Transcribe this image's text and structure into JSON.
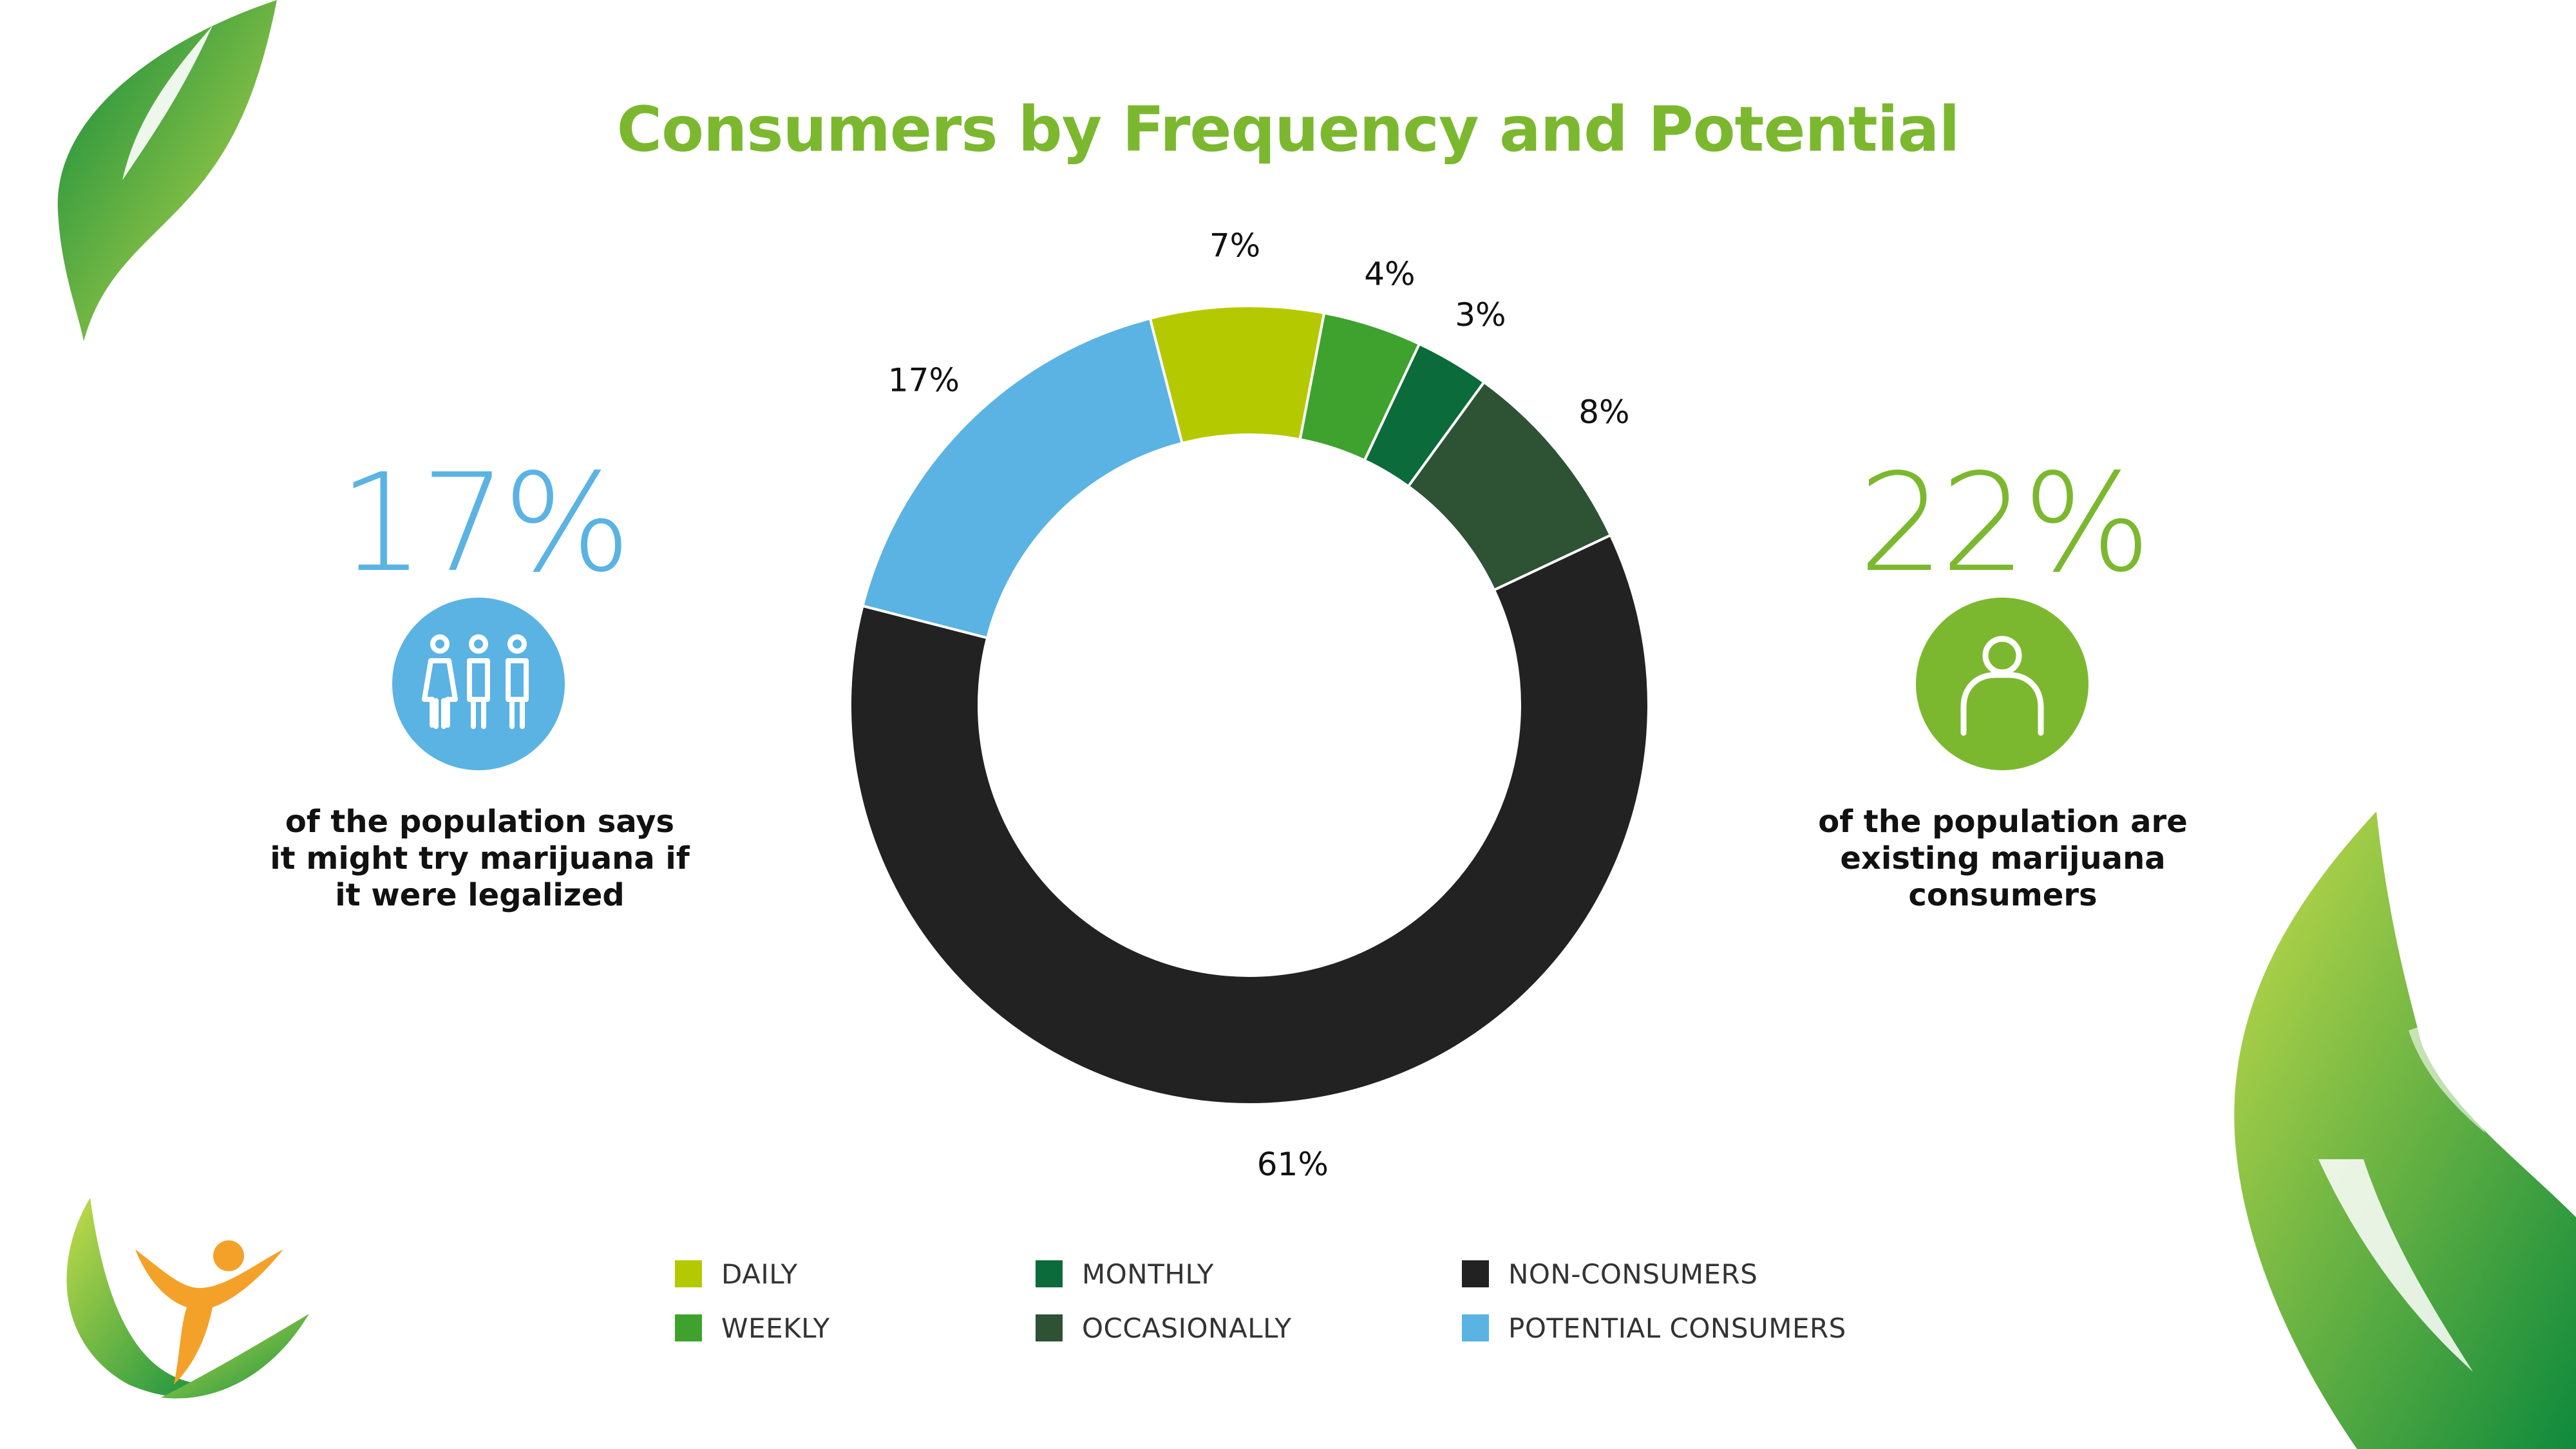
{
  "title": "Consumers by Frequency and Potential",
  "left_stat": {
    "value": "17%",
    "icon": "people-group-icon",
    "caption_lines": [
      "of the population says",
      "it might try marijuana if",
      "it were legalized"
    ]
  },
  "right_stat": {
    "value": "22%",
    "icon": "person-icon",
    "caption_lines": [
      "of the population are",
      "existing marijuana",
      "consumers"
    ]
  },
  "colors": {
    "title": "#7cb82f",
    "potential_blue": "#5ab3e3",
    "consumer_green": "#7cb82f"
  },
  "chart_data": {
    "type": "pie",
    "variant": "donut",
    "title": "Consumers by Frequency and Potential",
    "slices": [
      {
        "name": "DAILY",
        "value": 7,
        "label": "7%",
        "color": "#b5c900"
      },
      {
        "name": "WEEKLY",
        "value": 4,
        "label": "4%",
        "color": "#3fa22f"
      },
      {
        "name": "MONTHLY",
        "value": 3,
        "label": "3%",
        "color": "#0b6b3a"
      },
      {
        "name": "OCCASIONALLY",
        "value": 8,
        "label": "8%",
        "color": "#2e5234"
      },
      {
        "name": "NON-CONSUMERS",
        "value": 61,
        "label": "61%",
        "color": "#222222"
      },
      {
        "name": "POTENTIAL CONSUMERS",
        "value": 17,
        "label": "17%",
        "color": "#5ab3e3"
      }
    ],
    "legend": {
      "placement": "bottom",
      "items": [
        "DAILY",
        "WEEKLY",
        "MONTHLY",
        "OCCASIONALLY",
        "NON-CONSUMERS",
        "POTENTIAL CONSUMERS"
      ]
    }
  }
}
